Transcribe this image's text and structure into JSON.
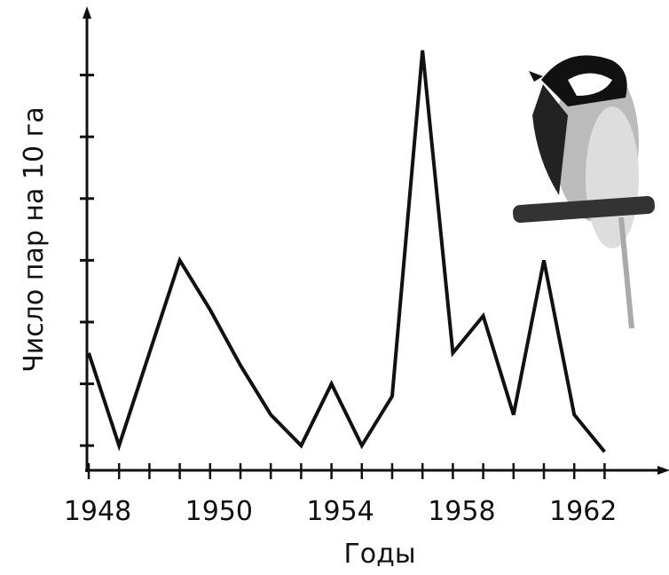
{
  "chart_data": {
    "type": "line",
    "y_label": "Число пар на 10 га",
    "x_label": "Годы",
    "categories": [
      "1948",
      null,
      null,
      null,
      "1950",
      null,
      null,
      null,
      "1954",
      null,
      null,
      null,
      "1958",
      null,
      null,
      null,
      "1962",
      null
    ],
    "series": [
      {
        "color": "#111111",
        "values": [
          2.5,
          1.0,
          2.5,
          4.0,
          3.2,
          2.3,
          1.5,
          1.0,
          2.0,
          1.0,
          1.8,
          7.4,
          2.5,
          3.1,
          1.5,
          4.0,
          1.5,
          0.9
        ]
      }
    ],
    "ylim": [
      0.6,
      8
    ],
    "yticks": [
      1,
      2,
      3,
      4,
      5,
      6,
      7
    ]
  }
}
